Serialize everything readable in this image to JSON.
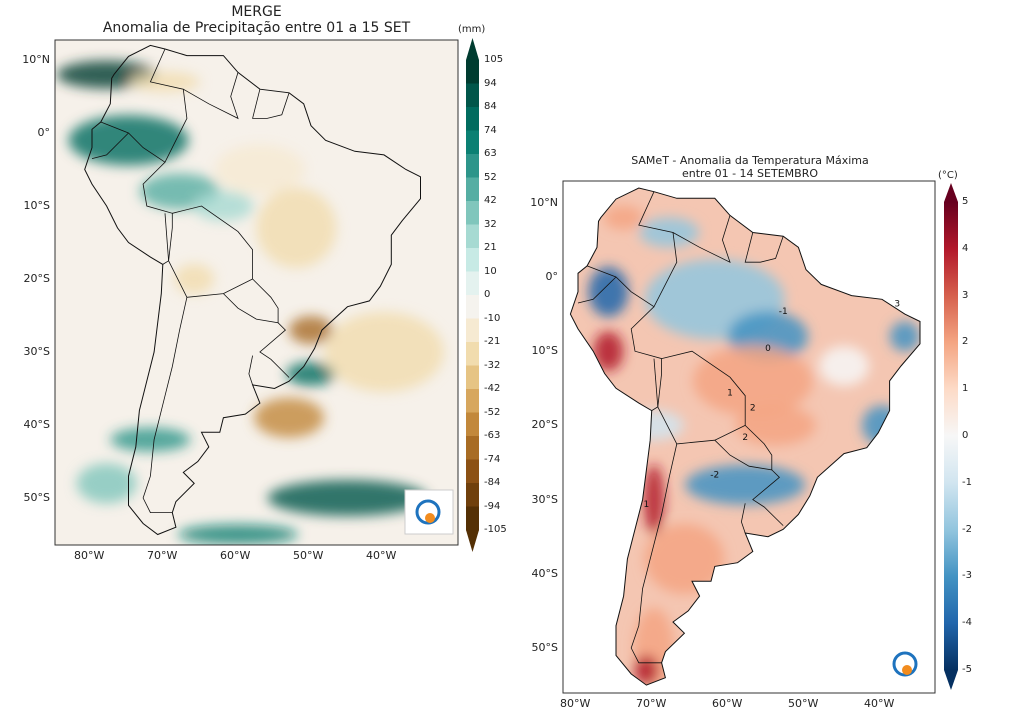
{
  "left_map": {
    "title": "MERGE",
    "subtitle": "Anomalia de Precipitação entre 01 a 15 SET",
    "unit": "(mm)",
    "lat_ticks": [
      "10°N",
      "0°",
      "10°S",
      "20°S",
      "30°S",
      "40°S",
      "50°S"
    ],
    "lon_ticks": [
      "80°W",
      "70°W",
      "60°W",
      "50°W",
      "40°W"
    ],
    "colorbar_ticks": [
      "105",
      "94",
      "84",
      "74",
      "63",
      "52",
      "42",
      "32",
      "21",
      "10",
      "0",
      "-10",
      "-21",
      "-32",
      "-42",
      "-52",
      "-63",
      "-74",
      "-84",
      "-94",
      "-105"
    ],
    "colorbar_colors": [
      "#003c30",
      "#01564a",
      "#016c5f",
      "#0b8073",
      "#2d958a",
      "#55aea3",
      "#80c6bc",
      "#a6dad2",
      "#c7eae5",
      "#e4f2ef",
      "#f5f3ee",
      "#f6ead2",
      "#f1dcae",
      "#e6c484",
      "#d7a75e",
      "#c2883b",
      "#a86c24",
      "#8c5115",
      "#70400c",
      "#543005"
    ],
    "logo": "INPE"
  },
  "right_map": {
    "title": "SAMeT - Anomalia da Temperatura Máxima",
    "subtitle": "entre 01 - 14 SETEMBRO",
    "unit": "(°C)",
    "lat_ticks": [
      "10°N",
      "0°",
      "10°S",
      "20°S",
      "30°S",
      "40°S",
      "50°S"
    ],
    "lon_ticks": [
      "80°W",
      "70°W",
      "60°W",
      "50°W",
      "40°W"
    ],
    "colorbar_ticks": [
      "5",
      "4",
      "3",
      "2",
      "1",
      "0",
      "-1",
      "-2",
      "-3",
      "-4",
      "-5"
    ],
    "colorbar_colors": [
      "#67001f",
      "#b2182b",
      "#d6604d",
      "#f4a582",
      "#fddbc7",
      "#f7f7f7",
      "#d1e5f0",
      "#92c5de",
      "#4393c3",
      "#2166ac",
      "#053061"
    ],
    "contour_labels": [
      "1",
      "2",
      "-1",
      "-2",
      "0",
      "3",
      "1",
      "2"
    ],
    "logo": "INPE"
  }
}
